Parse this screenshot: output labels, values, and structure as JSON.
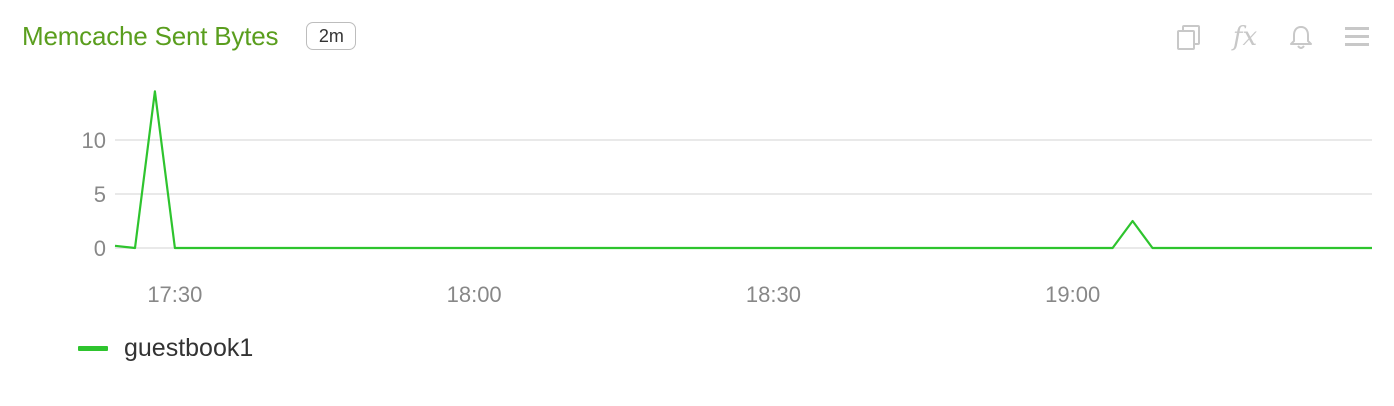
{
  "panel": {
    "title": "Memcache Sent Bytes",
    "interval_badge": "2m",
    "toolbar": [
      {
        "icon": "copy-icon"
      },
      {
        "icon": "fx-icon",
        "glyph": "fx"
      },
      {
        "icon": "bell-icon"
      },
      {
        "icon": "menu-icon"
      }
    ]
  },
  "colors": {
    "title": "#5a9e1e",
    "series": "#2ec42e",
    "grid": "#e2e2e2",
    "tick": "#888888",
    "icon": "#c8c8c8"
  },
  "chart_data": {
    "type": "line",
    "x_ticks": [
      "17:30",
      "18:00",
      "18:30",
      "19:00"
    ],
    "x_tick_times": [
      "17:30",
      "18:00",
      "18:30",
      "19:00"
    ],
    "x_range": [
      "17:24",
      "19:30"
    ],
    "y_ticks": [
      "0",
      "5",
      "10"
    ],
    "y_tick_values": [
      0,
      5,
      10
    ],
    "ylim": [
      0,
      15
    ],
    "grid": true,
    "legend_position": "bottom-left",
    "series": [
      {
        "name": "guestbook1",
        "points": [
          [
            "17:24",
            0.2
          ],
          [
            "17:26",
            0
          ],
          [
            "17:28",
            14.5
          ],
          [
            "17:30",
            0
          ],
          [
            "19:04",
            0
          ],
          [
            "19:06",
            2.5
          ],
          [
            "19:08",
            0
          ],
          [
            "19:30",
            0
          ]
        ]
      }
    ]
  },
  "legend": {
    "items": [
      {
        "label": "guestbook1"
      }
    ]
  }
}
